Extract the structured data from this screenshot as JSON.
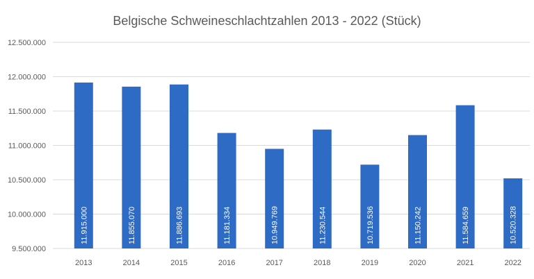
{
  "chart_data": {
    "type": "bar",
    "title": "Belgische Schweineschlachtzahlen 2013 - 2022 (Stück)",
    "xlabel": "",
    "ylabel": "",
    "categories": [
      "2013",
      "2014",
      "2015",
      "2016",
      "2017",
      "2018",
      "2019",
      "2020",
      "2021",
      "2022"
    ],
    "values": [
      11915000,
      11855070,
      11886693,
      11181334,
      10949769,
      11230544,
      10719536,
      11150242,
      11584659,
      10520328
    ],
    "data_labels": [
      "11.915.000",
      "11.855.070",
      "11.886.693",
      "11.181.334",
      "10.949.769",
      "11.230.544",
      "10.719.536",
      "11.150.242",
      "11.584.659",
      "10.520.328"
    ],
    "ylim": [
      9500000,
      12500000
    ],
    "yticks": [
      9500000,
      10000000,
      10500000,
      11000000,
      11500000,
      12000000,
      12500000
    ],
    "ytick_labels": [
      "9.500.000",
      "10.000.000",
      "10.500.000",
      "11.000.000",
      "11.500.000",
      "12.000.000",
      "12.500.000"
    ],
    "grid": true,
    "legend": "none",
    "bar_color": "#2e6bc5",
    "grid_color": "#d9d9d9",
    "text_color": "#595959"
  }
}
